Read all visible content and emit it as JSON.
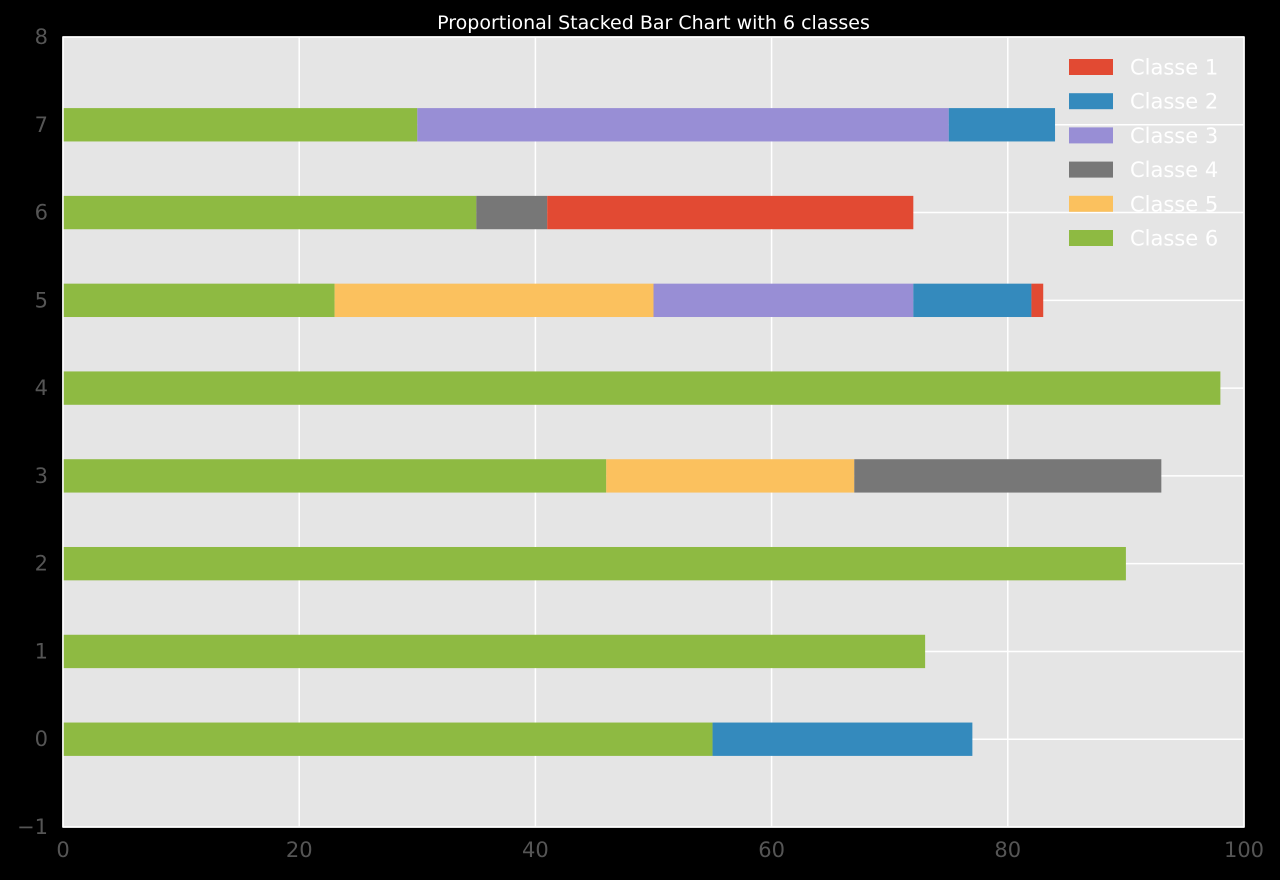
{
  "chart_data": {
    "type": "bar",
    "orientation": "horizontal",
    "stacked": true,
    "title": "Proportional Stacked Bar Chart with 6 classes",
    "categories": [
      "0",
      "1",
      "2",
      "3",
      "4",
      "5",
      "6",
      "7"
    ],
    "xlim": [
      0,
      100
    ],
    "ylim": [
      -1,
      8
    ],
    "xticks": [
      "0",
      "20",
      "40",
      "60",
      "80",
      "100"
    ],
    "yticks": [
      "−1",
      "0",
      "1",
      "2",
      "3",
      "4",
      "5",
      "6",
      "7",
      "8"
    ],
    "grid": true,
    "legend_position": "top-right",
    "stack_order": [
      "Classe 6",
      "Classe 5",
      "Classe 4",
      "Classe 3",
      "Classe 2",
      "Classe 1"
    ],
    "series": [
      {
        "name": "Classe 1",
        "color": "#E24A33",
        "values": [
          0,
          0,
          0,
          0,
          0,
          1,
          31,
          0
        ]
      },
      {
        "name": "Classe 2",
        "color": "#348ABD",
        "values": [
          22,
          0,
          0,
          0,
          0,
          10,
          0,
          9
        ]
      },
      {
        "name": "Classe 3",
        "color": "#988ED5",
        "values": [
          0,
          0,
          0,
          0,
          0,
          22,
          0,
          45
        ]
      },
      {
        "name": "Classe 4",
        "color": "#777777",
        "values": [
          0,
          0,
          0,
          26,
          0,
          0,
          6,
          0
        ]
      },
      {
        "name": "Classe 5",
        "color": "#FBC15E",
        "values": [
          0,
          0,
          0,
          21,
          0,
          27,
          0,
          0
        ]
      },
      {
        "name": "Classe 6",
        "color": "#8EBA42",
        "values": [
          55,
          73,
          90,
          46,
          98,
          23,
          35,
          30
        ]
      }
    ]
  }
}
